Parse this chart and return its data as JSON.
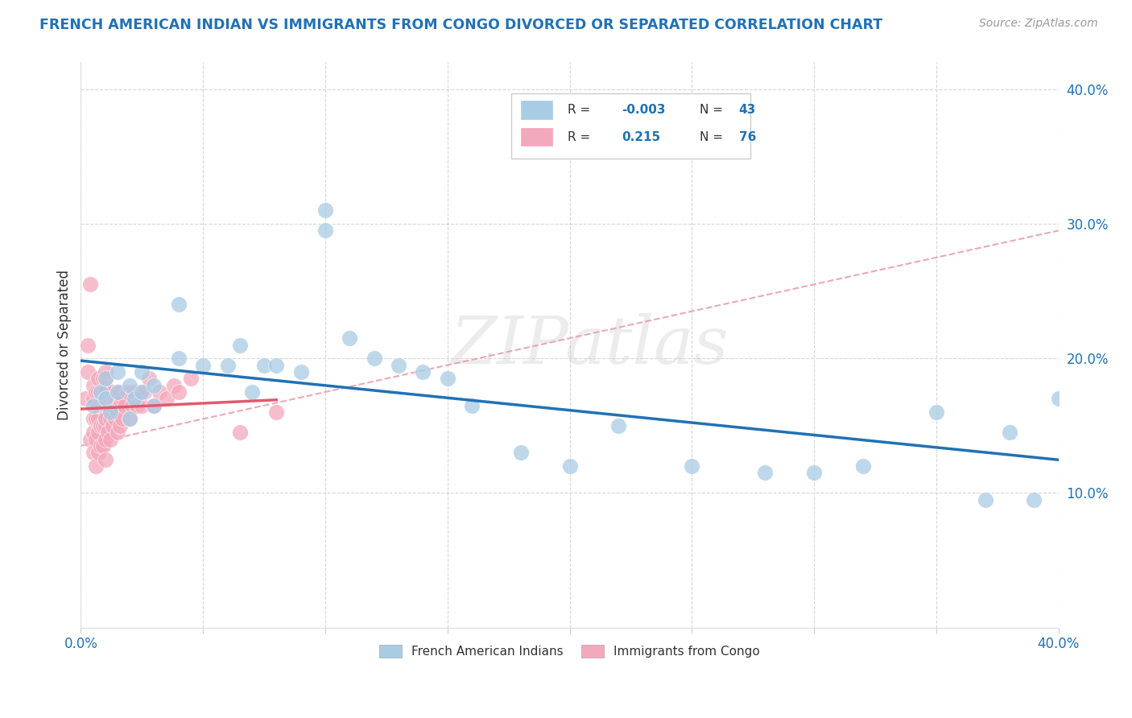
{
  "title": "FRENCH AMERICAN INDIAN VS IMMIGRANTS FROM CONGO DIVORCED OR SEPARATED CORRELATION CHART",
  "source": "Source: ZipAtlas.com",
  "ylabel": "Divorced or Separated",
  "xlim": [
    0.0,
    0.4
  ],
  "ylim": [
    0.0,
    0.42
  ],
  "watermark": "ZIPatlas",
  "legend_label1": "French American Indians",
  "legend_label2": "Immigrants from Congo",
  "blue_color": "#a8cce4",
  "pink_color": "#f4a8bc",
  "blue_line_color": "#2171b5",
  "pink_line_color": "#e05a6e",
  "dash_line_color": "#e8a0aa",
  "title_color": "#2171b5",
  "source_color": "#999999",
  "grid_color": "#cccccc",
  "tick_color": "#2171b5",
  "blue_scatter_x": [
    0.005,
    0.008,
    0.01,
    0.01,
    0.012,
    0.015,
    0.015,
    0.02,
    0.02,
    0.022,
    0.025,
    0.025,
    0.03,
    0.03,
    0.04,
    0.04,
    0.05,
    0.06,
    0.065,
    0.07,
    0.075,
    0.08,
    0.09,
    0.1,
    0.1,
    0.11,
    0.12,
    0.13,
    0.14,
    0.15,
    0.16,
    0.18,
    0.2,
    0.22,
    0.25,
    0.28,
    0.3,
    0.32,
    0.35,
    0.37,
    0.38,
    0.39,
    0.4
  ],
  "blue_scatter_y": [
    0.165,
    0.175,
    0.17,
    0.185,
    0.16,
    0.175,
    0.19,
    0.155,
    0.18,
    0.17,
    0.175,
    0.19,
    0.165,
    0.18,
    0.24,
    0.2,
    0.195,
    0.195,
    0.21,
    0.175,
    0.195,
    0.195,
    0.19,
    0.31,
    0.295,
    0.215,
    0.2,
    0.195,
    0.19,
    0.185,
    0.165,
    0.13,
    0.12,
    0.15,
    0.12,
    0.115,
    0.115,
    0.12,
    0.16,
    0.095,
    0.145,
    0.095,
    0.17
  ],
  "pink_scatter_x": [
    0.002,
    0.003,
    0.003,
    0.004,
    0.004,
    0.005,
    0.005,
    0.005,
    0.005,
    0.005,
    0.006,
    0.006,
    0.006,
    0.006,
    0.007,
    0.007,
    0.007,
    0.007,
    0.007,
    0.007,
    0.008,
    0.008,
    0.008,
    0.008,
    0.009,
    0.009,
    0.009,
    0.009,
    0.009,
    0.01,
    0.01,
    0.01,
    0.01,
    0.01,
    0.01,
    0.01,
    0.01,
    0.01,
    0.01,
    0.01,
    0.011,
    0.011,
    0.012,
    0.012,
    0.012,
    0.013,
    0.013,
    0.013,
    0.014,
    0.014,
    0.015,
    0.015,
    0.015,
    0.016,
    0.016,
    0.016,
    0.017,
    0.017,
    0.018,
    0.019,
    0.02,
    0.021,
    0.022,
    0.023,
    0.024,
    0.025,
    0.026,
    0.028,
    0.03,
    0.032,
    0.035,
    0.038,
    0.04,
    0.045,
    0.065,
    0.08
  ],
  "pink_scatter_y": [
    0.17,
    0.19,
    0.21,
    0.14,
    0.255,
    0.13,
    0.145,
    0.155,
    0.17,
    0.18,
    0.12,
    0.14,
    0.155,
    0.175,
    0.13,
    0.145,
    0.155,
    0.165,
    0.175,
    0.185,
    0.135,
    0.15,
    0.165,
    0.175,
    0.135,
    0.15,
    0.165,
    0.175,
    0.185,
    0.125,
    0.14,
    0.155,
    0.165,
    0.175,
    0.185,
    0.19,
    0.15,
    0.165,
    0.155,
    0.17,
    0.145,
    0.165,
    0.14,
    0.155,
    0.17,
    0.15,
    0.165,
    0.175,
    0.155,
    0.17,
    0.145,
    0.16,
    0.175,
    0.15,
    0.165,
    0.175,
    0.155,
    0.17,
    0.165,
    0.175,
    0.155,
    0.165,
    0.175,
    0.165,
    0.175,
    0.165,
    0.175,
    0.185,
    0.165,
    0.175,
    0.17,
    0.18,
    0.175,
    0.185,
    0.145,
    0.16
  ]
}
